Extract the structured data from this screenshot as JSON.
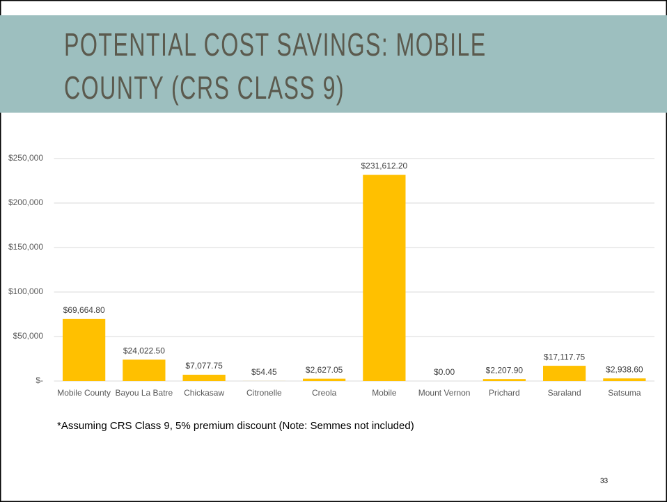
{
  "chart_data": {
    "type": "bar",
    "title_lines": [
      "POTENTIAL COST SAVINGS: MOBILE",
      "COUNTY (CRS CLASS 9)"
    ],
    "categories": [
      "Mobile County",
      "Bayou La Batre",
      "Chickasaw",
      "Citronelle",
      "Creola",
      "Mobile",
      "Mount Vernon",
      "Prichard",
      "Saraland",
      "Satsuma"
    ],
    "values": [
      69664.8,
      24022.5,
      7077.75,
      54.45,
      2627.05,
      231612.2,
      0.0,
      2207.9,
      17117.75,
      2938.6
    ],
    "value_labels": [
      "$69,664.80",
      "$24,022.50",
      "$7,077.75",
      "$54.45",
      "$2,627.05",
      "$231,612.20",
      "$0.00",
      "$2,207.90",
      "$17,117.75",
      "$2,938.60"
    ],
    "color": "#ffc000",
    "ylim": [
      0,
      250000
    ],
    "yticks": [
      {
        "value": 0,
        "label": "$-"
      },
      {
        "value": 50000,
        "label": "$50,000"
      },
      {
        "value": 100000,
        "label": "$100,000"
      },
      {
        "value": 150000,
        "label": "$150,000"
      },
      {
        "value": 200000,
        "label": "$200,000"
      },
      {
        "value": 250000,
        "label": "$250,000"
      }
    ],
    "grid": true,
    "footnote": "*Assuming CRS Class 9, 5% premium discount (Note: Semmes not included)",
    "page_number": "33"
  }
}
